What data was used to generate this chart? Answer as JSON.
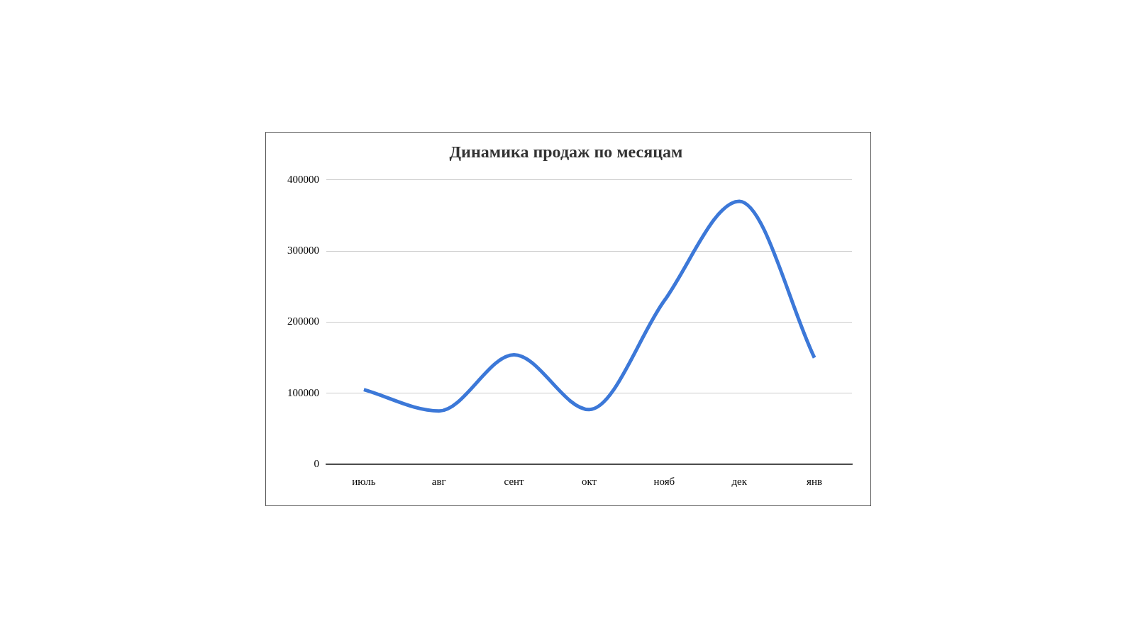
{
  "chart_data": {
    "type": "line",
    "title": "Динамика продаж по месяцам",
    "categories": [
      "июль",
      "авг",
      "сент",
      "окт",
      "нояб",
      "дек",
      "янв"
    ],
    "series": [
      {
        "color": "#3c78d8",
        "values": [
          105000,
          75000,
          154000,
          77000,
          230000,
          370000,
          150000
        ]
      }
    ],
    "ylim": [
      0,
      400000
    ],
    "yticks": [
      0,
      100000,
      200000,
      300000,
      400000
    ],
    "grid": "y",
    "legend": false,
    "marker": "none",
    "line_style": "solid"
  }
}
